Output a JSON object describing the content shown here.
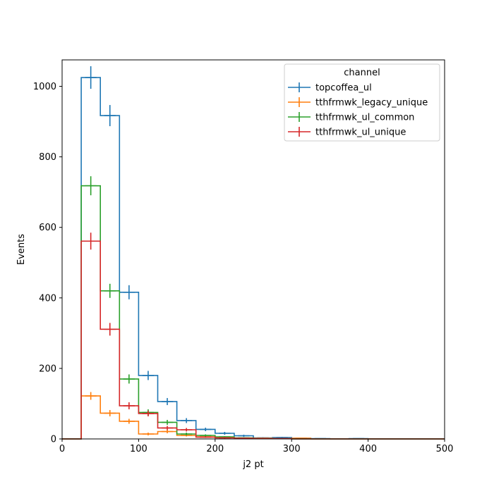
{
  "chart_data": {
    "type": "histogram",
    "xlabel": "j2 pt",
    "ylabel": "Events",
    "xlim": [
      0,
      500
    ],
    "ylim": [
      0,
      1075
    ],
    "x_ticks": [
      0,
      100,
      200,
      300,
      400,
      500
    ],
    "y_ticks": [
      0,
      200,
      400,
      600,
      800,
      1000
    ],
    "x_tick_labels": [
      "0",
      "100",
      "200",
      "300",
      "400",
      "500"
    ],
    "y_tick_labels": [
      "0",
      "200",
      "400",
      "600",
      "800",
      "1000"
    ],
    "bin_edges": [
      0,
      25,
      50,
      75,
      100,
      125,
      150,
      175,
      200,
      225,
      250,
      275,
      300,
      325,
      350,
      375,
      400,
      425,
      450,
      475,
      500
    ],
    "legend": {
      "title": "channel",
      "location": "upper right"
    },
    "grid": false,
    "series": [
      {
        "name": "topcoffea_ul",
        "color": "#1f77b4",
        "values": [
          0,
          1025,
          917,
          416,
          180,
          106,
          52,
          27,
          16,
          9,
          3,
          4,
          2,
          1,
          0,
          1,
          0,
          0,
          0,
          0
        ],
        "errors": [
          0,
          32,
          30,
          20,
          13,
          10,
          7,
          5,
          4,
          3,
          2,
          2,
          1,
          1,
          0,
          1,
          0,
          0,
          0,
          0
        ]
      },
      {
        "name": "tthfrmwk_legacy_unique",
        "color": "#ff7f0e",
        "values": [
          0,
          122,
          73,
          50,
          14,
          21,
          10,
          6,
          4,
          2,
          2,
          1,
          2,
          0,
          0,
          0,
          0,
          0,
          0,
          0
        ],
        "errors": [
          0,
          11,
          9,
          7,
          4,
          5,
          3,
          2,
          2,
          1,
          1,
          1,
          1,
          0,
          0,
          0,
          0,
          0,
          0,
          0
        ]
      },
      {
        "name": "tthfrmwk_ul_common",
        "color": "#2ca02c",
        "values": [
          0,
          718,
          420,
          170,
          75,
          47,
          14,
          10,
          6,
          3,
          1,
          1,
          0,
          0,
          0,
          0,
          0,
          0,
          0,
          0
        ],
        "errors": [
          0,
          27,
          20,
          13,
          9,
          7,
          4,
          3,
          2,
          2,
          1,
          1,
          0,
          0,
          0,
          0,
          0,
          0,
          0,
          0
        ]
      },
      {
        "name": "tthfrmwk_ul_unique",
        "color": "#d62728",
        "values": [
          0,
          561,
          311,
          94,
          72,
          31,
          26,
          5,
          3,
          2,
          1,
          1,
          0,
          0,
          0,
          0,
          0,
          0,
          0,
          0
        ],
        "errors": [
          0,
          24,
          18,
          10,
          8,
          6,
          5,
          2,
          2,
          1,
          1,
          1,
          0,
          0,
          0,
          0,
          0,
          0,
          0,
          0
        ]
      }
    ]
  }
}
